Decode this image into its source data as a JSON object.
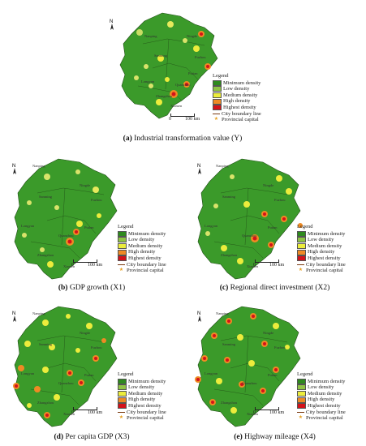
{
  "legend": {
    "title": "Legend",
    "items": [
      {
        "label": "Minimum density",
        "color": "#2e8a1e"
      },
      {
        "label": "Low density",
        "color": "#8fc444"
      },
      {
        "label": "Medium density",
        "color": "#ecec3c"
      },
      {
        "label": "High density",
        "color": "#ef8a24"
      },
      {
        "label": "Highest density",
        "color": "#d4121a"
      }
    ],
    "boundary_label": "City boundary line",
    "capital_label": "Provincial capital"
  },
  "north_label": "N",
  "scale": {
    "start": "0",
    "end": "100 km"
  },
  "cities": [
    "Nanping",
    "Ningde",
    "Sanming",
    "Fuzhou",
    "Longyan",
    "Putian",
    "Quanzhou",
    "Zhangzhou",
    "Xiamen"
  ],
  "panels": [
    {
      "letter": "(a)",
      "caption": "Industrial transformation value (Y)"
    },
    {
      "letter": "(b)",
      "caption": "GDP growth (X1)"
    },
    {
      "letter": "(c)",
      "caption": "Regional direct investment (X2)"
    },
    {
      "letter": "(d)",
      "caption": "Per capita GDP (X3)"
    },
    {
      "letter": "(e)",
      "caption": "Highway mileage (X4)"
    }
  ]
}
